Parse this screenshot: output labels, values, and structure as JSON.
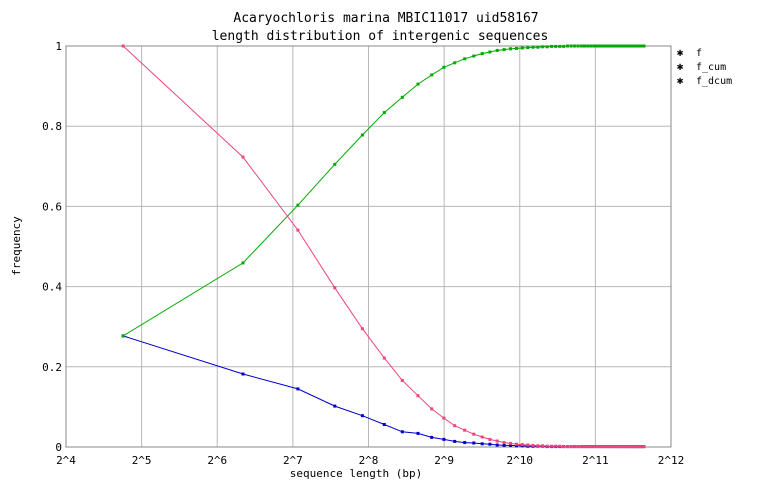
{
  "chart_data": {
    "type": "line",
    "title_line1": "Acaryochloris marina MBIC11017 uid58167",
    "title_line2": "length distribution of intergenic sequences",
    "xlabel": "sequence length (bp)",
    "ylabel": "frequency",
    "x_scale": "log2",
    "xlim": [
      16,
      4096
    ],
    "ylim": [
      0,
      1
    ],
    "xticks": [
      {
        "value": 16,
        "label": "2^4"
      },
      {
        "value": 32,
        "label": "2^5"
      },
      {
        "value": 64,
        "label": "2^6"
      },
      {
        "value": 128,
        "label": "2^7"
      },
      {
        "value": 256,
        "label": "2^8"
      },
      {
        "value": 512,
        "label": "2^9"
      },
      {
        "value": 1024,
        "label": "2^10"
      },
      {
        "value": 2048,
        "label": "2^11"
      },
      {
        "value": 4096,
        "label": "2^12"
      }
    ],
    "yticks": [
      {
        "value": 0,
        "label": "0"
      },
      {
        "value": 0.2,
        "label": "0.2"
      },
      {
        "value": 0.4,
        "label": "0.4"
      },
      {
        "value": 0.6,
        "label": "0.6"
      },
      {
        "value": 0.8,
        "label": "0.8"
      },
      {
        "value": 1,
        "label": "1"
      }
    ],
    "grid": true,
    "legend_position": "right",
    "series": [
      {
        "name": "f",
        "color": "#0000cc",
        "x": [
          27,
          81,
          134,
          188,
          242,
          296,
          349,
          403,
          457,
          511,
          564,
          618,
          672,
          726,
          779,
          833,
          887,
          941,
          994,
          1048,
          1102,
          1156,
          1209,
          1263,
          1317,
          1371,
          1424,
          1478,
          1532,
          1586,
          1639,
          1693,
          1747,
          1801,
          1854,
          1908,
          1962,
          2016,
          2069,
          2123,
          2177,
          2231,
          2284,
          2338,
          2392,
          2446,
          2499,
          2553,
          2607,
          2661,
          2714,
          2768,
          2822,
          2876,
          2929,
          2983,
          3037,
          3091,
          3144,
          3198
        ],
        "y": [
          0.277,
          0.182,
          0.145,
          0.102,
          0.078,
          0.056,
          0.038,
          0.034,
          0.024,
          0.019,
          0.014,
          0.011,
          0.01,
          0.008,
          0.007,
          0.005,
          0.004,
          0.004,
          0.003,
          0.003,
          0.002,
          0.002,
          0.002,
          0.002,
          0.001,
          0.001,
          0.001,
          0.001,
          0.001,
          0.001,
          0.001,
          0.001,
          0.001,
          0.001,
          0.001,
          0.001,
          0.001,
          0.001,
          0.001,
          0.001,
          0.001,
          0.001,
          0.001,
          0.001,
          0.001,
          0.001,
          0.001,
          0.001,
          0.001,
          0.001,
          0.001,
          0.001,
          0.001,
          0.001,
          0.001,
          0.001,
          0.001,
          0.001,
          0.001,
          0.001
        ]
      },
      {
        "name": "f_cum",
        "color": "#00aa00",
        "x": [
          27,
          81,
          134,
          188,
          242,
          296,
          349,
          403,
          457,
          511,
          564,
          618,
          672,
          726,
          779,
          833,
          887,
          941,
          994,
          1048,
          1102,
          1156,
          1209,
          1263,
          1317,
          1371,
          1424,
          1478,
          1532,
          1586,
          1639,
          1693,
          1747,
          1801,
          1854,
          1908,
          1962,
          2016,
          2069,
          2123,
          2177,
          2231,
          2284,
          2338,
          2392,
          2446,
          2499,
          2553,
          2607,
          2661,
          2714,
          2768,
          2822,
          2876,
          2929,
          2983,
          3037,
          3091,
          3144,
          3198
        ],
        "y": [
          0.277,
          0.459,
          0.603,
          0.705,
          0.778,
          0.834,
          0.872,
          0.905,
          0.928,
          0.947,
          0.958,
          0.968,
          0.975,
          0.981,
          0.985,
          0.989,
          0.991,
          0.993,
          0.994,
          0.995,
          0.996,
          0.997,
          0.997,
          0.998,
          0.998,
          0.999,
          0.999,
          0.999,
          0.999,
          1.0,
          1.0,
          1.0,
          1.0,
          1.0,
          1.0,
          1.0,
          1.0,
          1.0,
          1.0,
          1.0,
          1.0,
          1.0,
          1.0,
          1.0,
          1.0,
          1.0,
          1.0,
          1.0,
          1.0,
          1.0,
          1.0,
          1.0,
          1.0,
          1.0,
          1.0,
          1.0,
          1.0,
          1.0,
          1.0,
          1.0
        ]
      },
      {
        "name": "f_dcum",
        "color": "#ee4477",
        "x": [
          27,
          81,
          134,
          188,
          242,
          296,
          349,
          403,
          457,
          511,
          564,
          618,
          672,
          726,
          779,
          833,
          887,
          941,
          994,
          1048,
          1102,
          1156,
          1209,
          1263,
          1317,
          1371,
          1424,
          1478,
          1532,
          1586,
          1639,
          1693,
          1747,
          1801,
          1854,
          1908,
          1962,
          2016,
          2069,
          2123,
          2177,
          2231,
          2284,
          2338,
          2392,
          2446,
          2499,
          2553,
          2607,
          2661,
          2714,
          2768,
          2822,
          2876,
          2929,
          2983,
          3037,
          3091,
          3144,
          3198
        ],
        "y": [
          1.0,
          0.723,
          0.541,
          0.397,
          0.295,
          0.222,
          0.166,
          0.128,
          0.095,
          0.072,
          0.053,
          0.042,
          0.032,
          0.025,
          0.019,
          0.015,
          0.011,
          0.009,
          0.007,
          0.006,
          0.005,
          0.004,
          0.003,
          0.003,
          0.002,
          0.002,
          0.002,
          0.002,
          0.001,
          0.001,
          0.001,
          0.001,
          0.001,
          0.001,
          0.001,
          0.001,
          0.001,
          0.001,
          0.001,
          0.001,
          0.001,
          0.001,
          0.001,
          0.001,
          0.001,
          0.001,
          0.001,
          0.001,
          0.001,
          0.001,
          0.001,
          0.001,
          0.001,
          0.001,
          0.001,
          0.001,
          0.001,
          0.001,
          0.001,
          0.001
        ]
      }
    ]
  }
}
